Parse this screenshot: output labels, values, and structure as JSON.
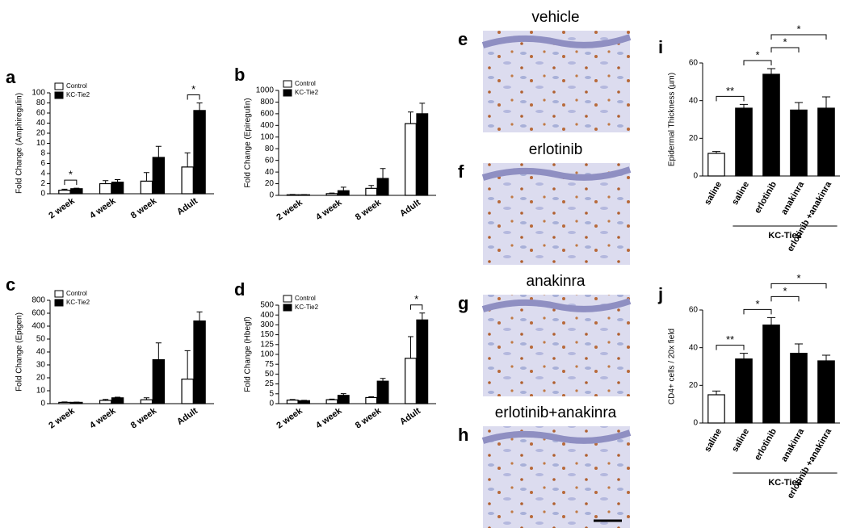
{
  "chart_data": [
    {
      "type": "bar",
      "letter": "a",
      "ylabel": "Fold Change (Amphiregulin)",
      "categories": [
        "2 week",
        "4 week",
        "8 week",
        "Adult"
      ],
      "series": [
        {
          "name": "Control",
          "color": "#ffffff",
          "values": [
            0.7,
            2.0,
            2.5,
            5.3
          ],
          "errors": [
            0.2,
            0.6,
            1.7,
            2.8
          ]
        },
        {
          "name": "KC-Tie2",
          "color": "#000000",
          "values": [
            1.0,
            2.3,
            7.2,
            65
          ],
          "errors": [
            0.1,
            0.5,
            2.2,
            15
          ]
        }
      ],
      "yticks": [
        0,
        2,
        4,
        6,
        8,
        10,
        20,
        40,
        60,
        80,
        100
      ],
      "significance": [
        {
          "between": [
            0,
            0
          ],
          "label": "*"
        },
        {
          "between": [
            3,
            3
          ],
          "label": "*"
        }
      ]
    },
    {
      "type": "bar",
      "letter": "b",
      "ylabel": "Fold Change (Epiregulin)",
      "categories": [
        "2 week",
        "4 week",
        "8 week",
        "Adult"
      ],
      "series": [
        {
          "name": "Control",
          "color": "#ffffff",
          "values": [
            1,
            3,
            12,
            430
          ],
          "errors": [
            0.5,
            1,
            5,
            200
          ]
        },
        {
          "name": "KC-Tie2",
          "color": "#000000",
          "values": [
            1,
            8,
            29,
            600
          ],
          "errors": [
            0.3,
            6,
            17,
            180
          ]
        }
      ],
      "yticks": [
        0,
        20,
        40,
        60,
        80,
        100,
        400,
        600,
        800,
        1000
      ],
      "significance": []
    },
    {
      "type": "bar",
      "letter": "c",
      "ylabel": "Fold Change (Epigen)",
      "categories": [
        "2 week",
        "4 week",
        "8 week",
        "Adult"
      ],
      "series": [
        {
          "name": "Control",
          "color": "#ffffff",
          "values": [
            1,
            2.5,
            3,
            19
          ],
          "errors": [
            0.3,
            0.8,
            1.5,
            22
          ]
        },
        {
          "name": "KC-Tie2",
          "color": "#000000",
          "values": [
            1,
            4.5,
            34,
            480
          ],
          "errors": [
            0.2,
            0.5,
            13,
            140
          ]
        }
      ],
      "yticks": [
        0,
        10,
        20,
        30,
        40,
        50,
        400,
        600,
        800
      ],
      "significance": []
    },
    {
      "type": "bar",
      "letter": "d",
      "ylabel": "Fold Change (Hbegf)",
      "categories": [
        "2 week",
        "4 week",
        "8 week",
        "Adult"
      ],
      "series": [
        {
          "name": "Control",
          "color": "#ffffff",
          "values": [
            1.8,
            2.0,
            3.1,
            90
          ],
          "errors": [
            0.3,
            0.3,
            0.4,
            55
          ]
        },
        {
          "name": "KC-Tie2",
          "color": "#000000",
          "values": [
            1.5,
            4.2,
            32,
            350
          ],
          "errors": [
            0.2,
            1.1,
            7,
            70
          ]
        }
      ],
      "yticks": [
        0,
        5,
        25,
        50,
        75,
        100,
        125,
        150,
        300,
        400,
        500
      ],
      "significance": [
        {
          "between": [
            3,
            3
          ],
          "label": "*"
        }
      ]
    },
    {
      "type": "bar",
      "letter": "i",
      "ylabel": "Epidermal Thickness (µm)",
      "categories": [
        "saline",
        "saline",
        "erlotinib",
        "anakinra",
        "erlotinib +anakinra"
      ],
      "series": [
        {
          "colors": [
            "#ffffff",
            "#000000",
            "#000000",
            "#000000",
            "#000000"
          ],
          "values": [
            12,
            36,
            54,
            35,
            36
          ],
          "errors": [
            1,
            2,
            3,
            4,
            6
          ]
        }
      ],
      "yticks": [
        0,
        20,
        40,
        60
      ],
      "group": {
        "label": "KC-Tie2",
        "from": 1,
        "to": 4
      },
      "significance": [
        {
          "between": [
            0,
            1
          ],
          "label": "**"
        },
        {
          "between": [
            1,
            2
          ],
          "label": "*"
        },
        {
          "between": [
            2,
            3
          ],
          "label": "*"
        },
        {
          "between": [
            2,
            4
          ],
          "label": "*"
        }
      ]
    },
    {
      "type": "bar",
      "letter": "j",
      "ylabel": "CD4+ cells / 20x field",
      "categories": [
        "saline",
        "saline",
        "erlotinib",
        "anakinra",
        "erlotinib +anakinra"
      ],
      "series": [
        {
          "colors": [
            "#ffffff",
            "#000000",
            "#000000",
            "#000000",
            "#000000"
          ],
          "values": [
            15,
            34,
            52,
            37,
            33
          ],
          "errors": [
            2,
            3,
            4,
            5,
            3
          ]
        }
      ],
      "yticks": [
        0,
        20,
        40,
        60
      ],
      "group": {
        "label": "KC-Tie2",
        "from": 1,
        "to": 4
      },
      "significance": [
        {
          "between": [
            0,
            1
          ],
          "label": "**"
        },
        {
          "between": [
            1,
            2
          ],
          "label": "*"
        },
        {
          "between": [
            2,
            3
          ],
          "label": "*"
        },
        {
          "between": [
            2,
            4
          ],
          "label": "*"
        }
      ]
    }
  ],
  "images": [
    {
      "letter": "e",
      "label": "vehicle"
    },
    {
      "letter": "f",
      "label": "erlotinib"
    },
    {
      "letter": "g",
      "label": "anakinra"
    },
    {
      "letter": "h",
      "label": "erlotinib+anakinra"
    }
  ]
}
